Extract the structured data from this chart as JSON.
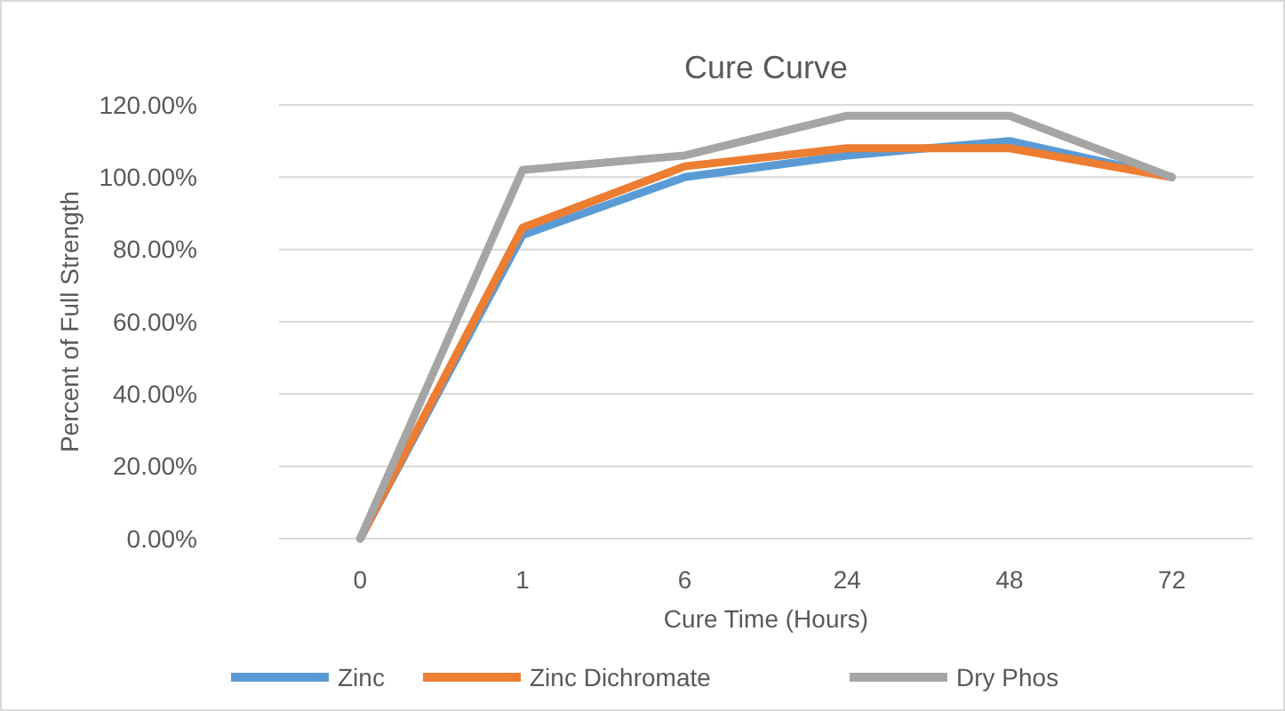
{
  "chart_data": {
    "type": "line",
    "title": "Cure Curve",
    "xlabel": "Cure Time (Hours)",
    "ylabel": "Percent of Full Strength",
    "categories": [
      "0",
      "1",
      "6",
      "24",
      "48",
      "72"
    ],
    "series": [
      {
        "name": "Zinc",
        "color": "#5b9bd5",
        "values": [
          0,
          84,
          100,
          106,
          110,
          100
        ]
      },
      {
        "name": "Zinc Dichromate",
        "color": "#ed7d31",
        "values": [
          0,
          86,
          103,
          108,
          108,
          100
        ]
      },
      {
        "name": "Dry Phos",
        "color": "#a5a5a5",
        "values": [
          0,
          102,
          106,
          117,
          117,
          100
        ]
      }
    ],
    "ylim": [
      0,
      120
    ],
    "yticks": [
      {
        "value": 0,
        "label": "0.00%"
      },
      {
        "value": 20,
        "label": "20.00%"
      },
      {
        "value": 40,
        "label": "40.00%"
      },
      {
        "value": 60,
        "label": "60.00%"
      },
      {
        "value": 80,
        "label": "80.00%"
      },
      {
        "value": 100,
        "label": "100.00%"
      },
      {
        "value": 120,
        "label": "120.00%"
      }
    ],
    "grid": "y",
    "legend": "bottom",
    "marker": "none",
    "line_style": "solid"
  }
}
